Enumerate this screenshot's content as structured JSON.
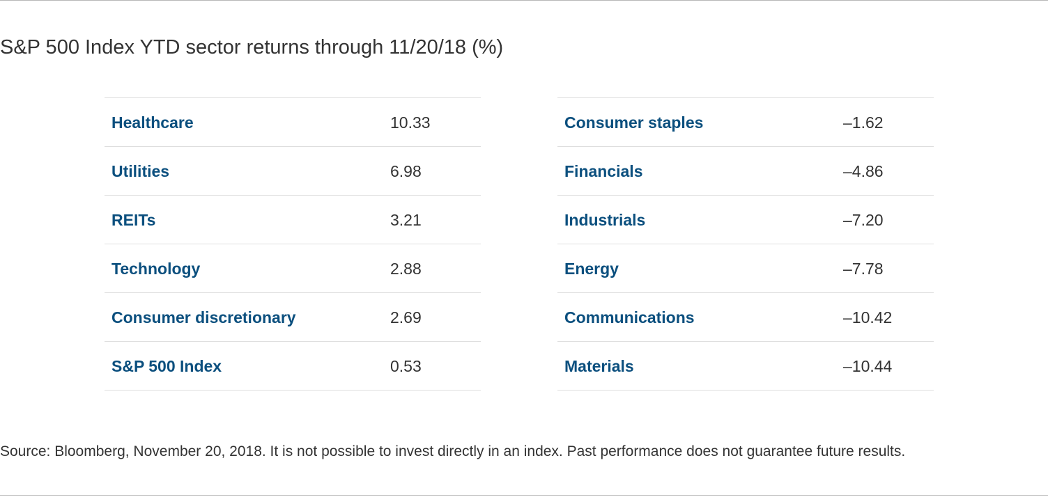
{
  "chart_data": {
    "type": "table",
    "title": "S&P 500 Index YTD sector returns through 11/20/18 (%)",
    "left_table": [
      {
        "sector": "Healthcare",
        "value": "10.33"
      },
      {
        "sector": "Utilities",
        "value": "6.98"
      },
      {
        "sector": "REITs",
        "value": "3.21"
      },
      {
        "sector": "Technology",
        "value": "2.88"
      },
      {
        "sector": "Consumer discretionary",
        "value": "2.69"
      },
      {
        "sector": "S&P 500 Index",
        "value": "0.53"
      }
    ],
    "right_table": [
      {
        "sector": "Consumer staples",
        "value": "–1.62"
      },
      {
        "sector": "Financials",
        "value": "–4.86"
      },
      {
        "sector": "Industrials",
        "value": "–7.20"
      },
      {
        "sector": "Energy",
        "value": "–7.78"
      },
      {
        "sector": "Communications",
        "value": "–10.42"
      },
      {
        "sector": "Materials",
        "value": "–10.44"
      }
    ],
    "source": "Source: Bloomberg, November 20, 2018. It is not possible to invest directly in an index. Past performance does not guarantee future results."
  },
  "colors": {
    "label": "#0b4f7e",
    "text": "#333333",
    "rule": "#dedede"
  }
}
